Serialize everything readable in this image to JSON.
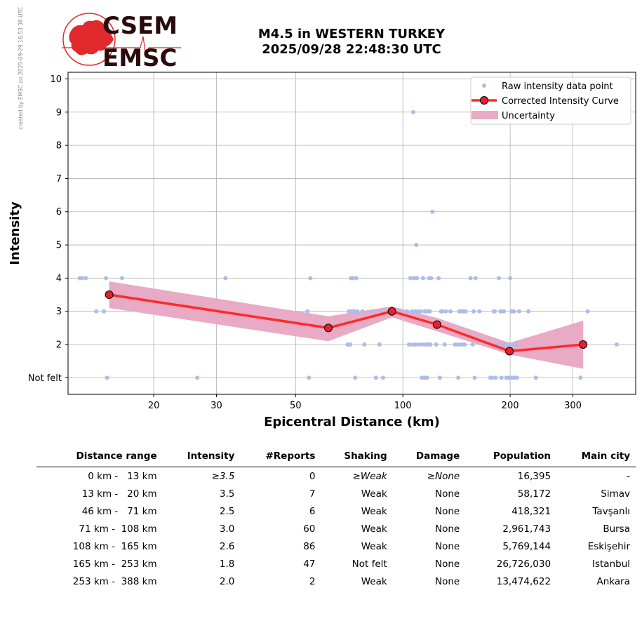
{
  "watermark": "created by EMSC on 2025-09-29 16:53:38 UTC",
  "logo": {
    "top": "CSEM",
    "bottom": "EMSC"
  },
  "title": {
    "line1": "M4.5 in WESTERN TURKEY",
    "line2": "2025/09/28 22:48:30 UTC"
  },
  "colors": {
    "raw": "#aebce8",
    "curve": "#ff2a2a",
    "marker": "#e8202a",
    "band": "#e8aac4",
    "logo_red": "#e0292b",
    "logo_text": "#2a0b0b"
  },
  "chart_data": {
    "type": "scatter",
    "xlabel": "Epicentral Distance (km)",
    "ylabel": "Intensity",
    "x_scale": "log",
    "xlim": [
      11.5,
      450
    ],
    "ylim": [
      0.5,
      10.2
    ],
    "x_ticks": [
      20,
      30,
      50,
      100,
      200,
      300
    ],
    "y_ticks": [
      {
        "value": 1,
        "label": "Not felt"
      },
      {
        "value": 2,
        "label": "2"
      },
      {
        "value": 3,
        "label": "3"
      },
      {
        "value": 4,
        "label": "4"
      },
      {
        "value": 5,
        "label": "5"
      },
      {
        "value": 6,
        "label": "6"
      },
      {
        "value": 7,
        "label": "7"
      },
      {
        "value": 8,
        "label": "8"
      },
      {
        "value": 9,
        "label": "9"
      },
      {
        "value": 10,
        "label": "10"
      }
    ],
    "grid": true,
    "legend_position": "top-right",
    "legend": [
      "Raw intensity data point",
      "Corrected Intensity Curve",
      "Uncertainty"
    ],
    "raw_points": [
      [
        12.4,
        4
      ],
      [
        12.6,
        4
      ],
      [
        12.9,
        4
      ],
      [
        13.8,
        3
      ],
      [
        14.5,
        3
      ],
      [
        14.7,
        4
      ],
      [
        14.8,
        1
      ],
      [
        16.3,
        4
      ],
      [
        26.5,
        1
      ],
      [
        31.8,
        4
      ],
      [
        54,
        3
      ],
      [
        54.5,
        1
      ],
      [
        55,
        4
      ],
      [
        70,
        2
      ],
      [
        70.5,
        3
      ],
      [
        71,
        3
      ],
      [
        71.2,
        2
      ],
      [
        71.5,
        4
      ],
      [
        72,
        3
      ],
      [
        72.3,
        4
      ],
      [
        73,
        3
      ],
      [
        73.5,
        1
      ],
      [
        74,
        4
      ],
      [
        74.5,
        3
      ],
      [
        77,
        3
      ],
      [
        78,
        2
      ],
      [
        82,
        3
      ],
      [
        84,
        1
      ],
      [
        86,
        2
      ],
      [
        87,
        3
      ],
      [
        88,
        1
      ],
      [
        91,
        3
      ],
      [
        95,
        3
      ],
      [
        98,
        3
      ],
      [
        103,
        3
      ],
      [
        104,
        2
      ],
      [
        105,
        4
      ],
      [
        106,
        3
      ],
      [
        106.5,
        2
      ],
      [
        107,
        9
      ],
      [
        107.5,
        4
      ],
      [
        108,
        3
      ],
      [
        108.5,
        2
      ],
      [
        109,
        5
      ],
      [
        109.5,
        4
      ],
      [
        110,
        3
      ],
      [
        111,
        2
      ],
      [
        112,
        3
      ],
      [
        113,
        1
      ],
      [
        113.5,
        2
      ],
      [
        114,
        4
      ],
      [
        114.5,
        1
      ],
      [
        115,
        3
      ],
      [
        115.5,
        1
      ],
      [
        116,
        2
      ],
      [
        116.5,
        3
      ],
      [
        117,
        1
      ],
      [
        117.5,
        3
      ],
      [
        118,
        2
      ],
      [
        118.5,
        4
      ],
      [
        119,
        3
      ],
      [
        119.5,
        2
      ],
      [
        120,
        4
      ],
      [
        121,
        6
      ],
      [
        124,
        2
      ],
      [
        126,
        4
      ],
      [
        127,
        1
      ],
      [
        128,
        3
      ],
      [
        129,
        3
      ],
      [
        131,
        2
      ],
      [
        132,
        3
      ],
      [
        136,
        3
      ],
      [
        140,
        2
      ],
      [
        142,
        2
      ],
      [
        143,
        1
      ],
      [
        144,
        3
      ],
      [
        145,
        2
      ],
      [
        146,
        3
      ],
      [
        147,
        2
      ],
      [
        148,
        3
      ],
      [
        149,
        2
      ],
      [
        150,
        3
      ],
      [
        155,
        4
      ],
      [
        157,
        2
      ],
      [
        158,
        3
      ],
      [
        159,
        1
      ],
      [
        160,
        4
      ],
      [
        164,
        3
      ],
      [
        176,
        1
      ],
      [
        178,
        1
      ],
      [
        180,
        3
      ],
      [
        181,
        3
      ],
      [
        182,
        1
      ],
      [
        184,
        2
      ],
      [
        186,
        4
      ],
      [
        188,
        3
      ],
      [
        189,
        1
      ],
      [
        190,
        3
      ],
      [
        191,
        2
      ],
      [
        192,
        3
      ],
      [
        194,
        2
      ],
      [
        195,
        1
      ],
      [
        197,
        2
      ],
      [
        198,
        1
      ],
      [
        199,
        2
      ],
      [
        200,
        4
      ],
      [
        201,
        1
      ],
      [
        202,
        3
      ],
      [
        203,
        2
      ],
      [
        204,
        1
      ],
      [
        205,
        3
      ],
      [
        206,
        2
      ],
      [
        207,
        1
      ],
      [
        208,
        2
      ],
      [
        209,
        1
      ],
      [
        212,
        3
      ],
      [
        225,
        3
      ],
      [
        236,
        1
      ],
      [
        315,
        1
      ],
      [
        330,
        3
      ],
      [
        398,
        2
      ]
    ],
    "curve": {
      "x": [
        15,
        61.8,
        93.2,
        124.7,
        199.1,
        320.6
      ],
      "y": [
        3.5,
        2.5,
        3.0,
        2.6,
        1.8,
        2.0
      ]
    },
    "uncertainty_upper": [
      3.9,
      2.85,
      3.15,
      2.8,
      2.05,
      2.72
    ],
    "uncertainty_lower": [
      3.1,
      2.1,
      2.82,
      2.4,
      1.7,
      1.27
    ]
  },
  "table": {
    "headers": [
      "Distance range",
      "Intensity",
      "#Reports",
      "Shaking",
      "Damage",
      "Population",
      "Main city"
    ],
    "rows": [
      {
        "range": "0 km -   13 km",
        "intensity": "≥3.5",
        "reports": "0",
        "shaking": "≥Weak",
        "damage": "≥None",
        "population": "16,395",
        "city": "-"
      },
      {
        "range": "13 km -   20 km",
        "intensity": "3.5",
        "reports": "7",
        "shaking": "Weak",
        "damage": "None",
        "population": "58,172",
        "city": "Simav"
      },
      {
        "range": "46 km -   71 km",
        "intensity": "2.5",
        "reports": "6",
        "shaking": "Weak",
        "damage": "None",
        "population": "418,321",
        "city": "Tavşanlı"
      },
      {
        "range": "71 km -  108 km",
        "intensity": "3.0",
        "reports": "60",
        "shaking": "Weak",
        "damage": "None",
        "population": "2,961,743",
        "city": "Bursa"
      },
      {
        "range": "108 km -  165 km",
        "intensity": "2.6",
        "reports": "86",
        "shaking": "Weak",
        "damage": "None",
        "population": "5,769,144",
        "city": "Eskişehir"
      },
      {
        "range": "165 km -  253 km",
        "intensity": "1.8",
        "reports": "47",
        "shaking": "Not felt",
        "damage": "None",
        "population": "26,726,030",
        "city": "Istanbul"
      },
      {
        "range": "253 km -  388 km",
        "intensity": "2.0",
        "reports": "2",
        "shaking": "Weak",
        "damage": "None",
        "population": "13,474,622",
        "city": "Ankara"
      }
    ]
  }
}
